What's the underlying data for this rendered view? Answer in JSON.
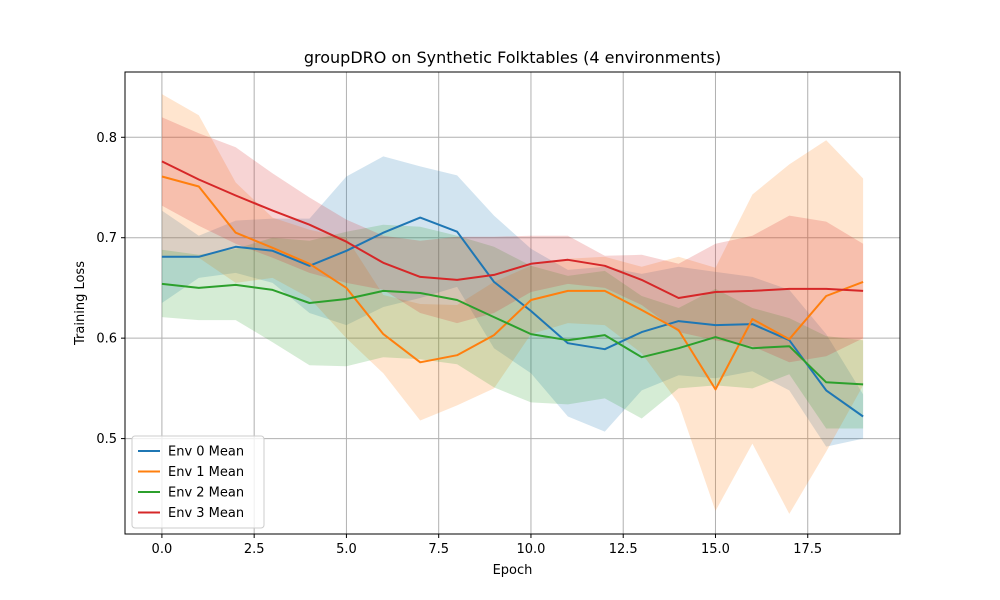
{
  "chart_data": {
    "type": "line",
    "title": "groupDRO on Synthetic Folktables (4 environments)",
    "xlabel": "Epoch",
    "ylabel": "Training Loss",
    "xlim": [
      -1,
      20
    ],
    "ylim": [
      0.405,
      0.865
    ],
    "xticks": [
      0.0,
      2.5,
      5.0,
      7.5,
      10.0,
      12.5,
      15.0,
      17.5
    ],
    "xtick_labels": [
      "0.0",
      "2.5",
      "5.0",
      "7.5",
      "10.0",
      "12.5",
      "15.0",
      "17.5"
    ],
    "yticks": [
      0.5,
      0.6,
      0.7,
      0.8
    ],
    "ytick_labels": [
      "0.5",
      "0.6",
      "0.7",
      "0.8"
    ],
    "grid": true,
    "legend_position": "lower-left",
    "x": [
      0,
      1,
      2,
      3,
      4,
      5,
      6,
      7,
      8,
      9,
      10,
      11,
      12,
      13,
      14,
      15,
      16,
      17,
      18,
      19
    ],
    "series": [
      {
        "name": "Env 0 Mean",
        "color": "#1f77b4",
        "values": [
          0.681,
          0.681,
          0.691,
          0.687,
          0.672,
          0.687,
          0.705,
          0.72,
          0.706,
          0.656,
          0.627,
          0.595,
          0.589,
          0.606,
          0.617,
          0.613,
          0.614,
          0.598,
          0.548,
          0.522
        ],
        "lower": [
          0.635,
          0.66,
          0.665,
          0.655,
          0.625,
          0.613,
          0.631,
          0.64,
          0.651,
          0.59,
          0.565,
          0.522,
          0.507,
          0.548,
          0.563,
          0.56,
          0.567,
          0.548,
          0.492,
          0.5
        ],
        "upper": [
          0.727,
          0.702,
          0.717,
          0.719,
          0.719,
          0.761,
          0.781,
          0.771,
          0.762,
          0.722,
          0.689,
          0.668,
          0.671,
          0.664,
          0.671,
          0.666,
          0.661,
          0.648,
          0.604,
          0.544
        ]
      },
      {
        "name": "Env 1 Mean",
        "color": "#ff7f0e",
        "values": [
          0.761,
          0.751,
          0.705,
          0.69,
          0.674,
          0.65,
          0.604,
          0.576,
          0.583,
          0.603,
          0.638,
          0.647,
          0.647,
          0.628,
          0.608,
          0.549,
          0.619,
          0.599,
          0.642,
          0.656
        ],
        "lower": [
          0.68,
          0.68,
          0.655,
          0.66,
          0.64,
          0.6,
          0.565,
          0.518,
          0.533,
          0.55,
          0.604,
          0.615,
          0.613,
          0.585,
          0.535,
          0.428,
          0.495,
          0.425,
          0.487,
          0.553
        ],
        "upper": [
          0.843,
          0.822,
          0.755,
          0.72,
          0.708,
          0.7,
          0.643,
          0.634,
          0.633,
          0.656,
          0.672,
          0.679,
          0.681,
          0.671,
          0.681,
          0.67,
          0.743,
          0.773,
          0.797,
          0.759
        ]
      },
      {
        "name": "Env 2 Mean",
        "color": "#2ca02c",
        "values": [
          0.654,
          0.65,
          0.653,
          0.648,
          0.635,
          0.639,
          0.647,
          0.645,
          0.638,
          0.621,
          0.604,
          0.598,
          0.603,
          0.581,
          0.59,
          0.601,
          0.59,
          0.592,
          0.556,
          0.554
        ],
        "lower": [
          0.621,
          0.618,
          0.618,
          0.596,
          0.573,
          0.572,
          0.581,
          0.579,
          0.574,
          0.551,
          0.536,
          0.534,
          0.54,
          0.52,
          0.55,
          0.553,
          0.55,
          0.564,
          0.51,
          0.51
        ],
        "upper": [
          0.688,
          0.683,
          0.689,
          0.7,
          0.697,
          0.706,
          0.713,
          0.711,
          0.702,
          0.691,
          0.672,
          0.662,
          0.667,
          0.642,
          0.63,
          0.649,
          0.63,
          0.62,
          0.602,
          0.598
        ]
      },
      {
        "name": "Env 3 Mean",
        "color": "#d62728",
        "values": [
          0.776,
          0.758,
          0.742,
          0.727,
          0.713,
          0.696,
          0.675,
          0.661,
          0.658,
          0.663,
          0.674,
          0.678,
          0.672,
          0.658,
          0.64,
          0.646,
          0.647,
          0.649,
          0.649,
          0.647
        ],
        "lower": [
          0.732,
          0.712,
          0.694,
          0.68,
          0.665,
          0.655,
          0.648,
          0.625,
          0.615,
          0.625,
          0.646,
          0.654,
          0.65,
          0.633,
          0.606,
          0.598,
          0.592,
          0.576,
          0.582,
          0.6
        ],
        "upper": [
          0.82,
          0.804,
          0.79,
          0.764,
          0.74,
          0.718,
          0.702,
          0.697,
          0.701,
          0.701,
          0.702,
          0.702,
          0.682,
          0.683,
          0.674,
          0.694,
          0.702,
          0.722,
          0.716,
          0.694
        ]
      }
    ]
  }
}
